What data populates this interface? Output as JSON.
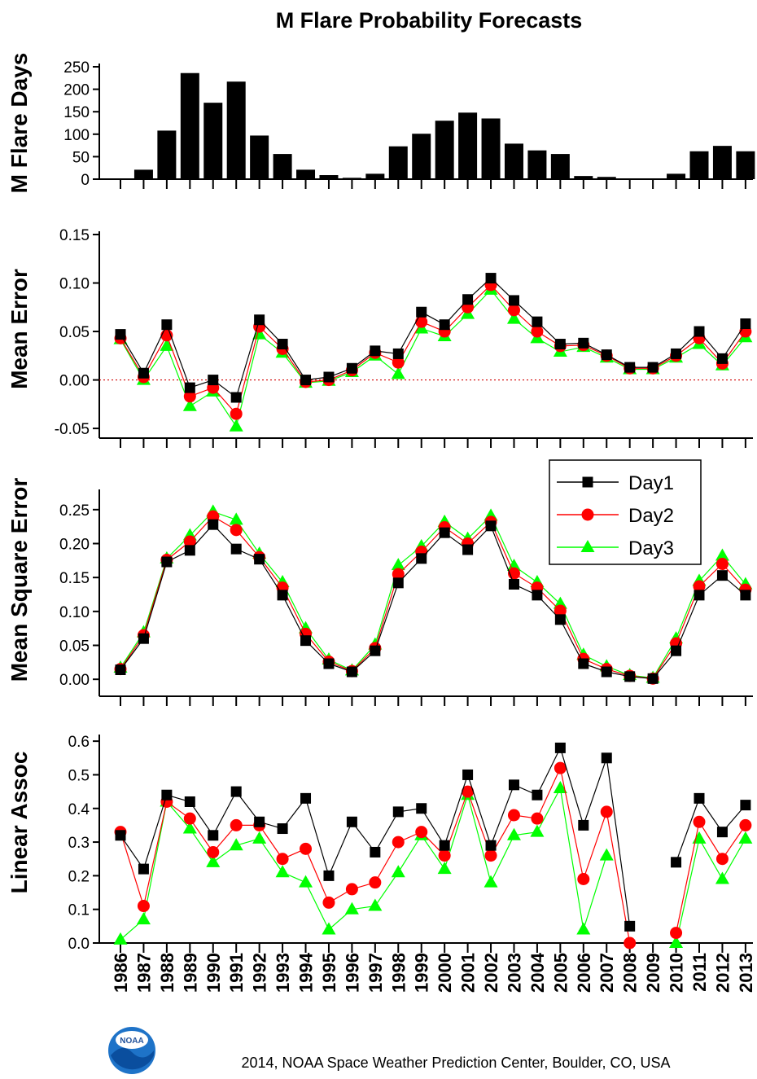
{
  "title": "M Flare Probability Forecasts",
  "credit": "2014, NOAA Space Weather Prediction Center, Boulder, CO, USA",
  "logo_text": "NOAA",
  "colors": {
    "day1": "#000000",
    "day2": "#ff0000",
    "day3": "#00ff00",
    "zero_line": "#d00000"
  },
  "chart_data": [
    {
      "type": "bar",
      "ylabel": "M  Flare Days",
      "ylim": [
        0,
        250
      ],
      "yticks": [
        "0",
        "50",
        "100",
        "150",
        "200",
        "250"
      ],
      "categories": [
        "1986",
        "1987",
        "1988",
        "1989",
        "1990",
        "1991",
        "1992",
        "1993",
        "1994",
        "1995",
        "1996",
        "1997",
        "1998",
        "1999",
        "2000",
        "2001",
        "2002",
        "2003",
        "2004",
        "2005",
        "2006",
        "2007",
        "2008",
        "2009",
        "2010",
        "2011",
        "2012",
        "2013"
      ],
      "values": [
        0,
        21,
        108,
        236,
        170,
        217,
        97,
        56,
        21,
        9,
        3,
        12,
        73,
        101,
        130,
        148,
        135,
        79,
        64,
        56,
        7,
        5,
        0,
        0,
        12,
        62,
        74,
        62
      ]
    },
    {
      "type": "line",
      "ylabel": "Mean Error",
      "ylim": [
        -0.06,
        0.15
      ],
      "yticks": [
        "-0.05",
        "0.00",
        "0.05",
        "0.10",
        "0.15"
      ],
      "reference_line": 0.0,
      "x": [
        "1986",
        "1987",
        "1988",
        "1989",
        "1990",
        "1991",
        "1992",
        "1993",
        "1994",
        "1995",
        "1996",
        "1997",
        "1998",
        "1999",
        "2000",
        "2001",
        "2002",
        "2003",
        "2004",
        "2005",
        "2006",
        "2007",
        "2008",
        "2009",
        "2010",
        "2011",
        "2012",
        "2013"
      ],
      "series": [
        {
          "name": "Day1",
          "values": [
            0.047,
            0.007,
            0.057,
            -0.008,
            0.0,
            -0.018,
            0.062,
            0.037,
            0.0,
            0.003,
            0.012,
            0.03,
            0.027,
            0.07,
            0.057,
            0.083,
            0.105,
            0.082,
            0.06,
            0.037,
            0.038,
            0.026,
            0.013,
            0.013,
            0.027,
            0.05,
            0.022,
            0.058
          ]
        },
        {
          "name": "Day2",
          "values": [
            0.043,
            0.003,
            0.046,
            -0.017,
            -0.008,
            -0.035,
            0.055,
            0.032,
            -0.002,
            0.0,
            0.01,
            0.028,
            0.018,
            0.06,
            0.05,
            0.075,
            0.098,
            0.072,
            0.05,
            0.035,
            0.036,
            0.025,
            0.012,
            0.012,
            0.025,
            0.043,
            0.017,
            0.05
          ]
        },
        {
          "name": "Day3",
          "values": [
            0.042,
            0.0,
            0.035,
            -0.027,
            -0.012,
            -0.048,
            0.047,
            0.028,
            -0.003,
            -0.001,
            0.008,
            0.025,
            0.006,
            0.053,
            0.045,
            0.068,
            0.093,
            0.063,
            0.043,
            0.029,
            0.034,
            0.023,
            0.011,
            0.011,
            0.023,
            0.037,
            0.015,
            0.044
          ]
        }
      ]
    },
    {
      "type": "line",
      "ylabel": "Mean Square Error",
      "ylim": [
        -0.025,
        0.275
      ],
      "yticks": [
        "0.00",
        "0.05",
        "0.10",
        "0.15",
        "0.20",
        "0.25"
      ],
      "legend": "top-right",
      "x": [
        "1986",
        "1987",
        "1988",
        "1989",
        "1990",
        "1991",
        "1992",
        "1993",
        "1994",
        "1995",
        "1996",
        "1997",
        "1998",
        "1999",
        "2000",
        "2001",
        "2002",
        "2003",
        "2004",
        "2005",
        "2006",
        "2007",
        "2008",
        "2009",
        "2010",
        "2011",
        "2012",
        "2013"
      ],
      "series": [
        {
          "name": "Day1",
          "values": [
            0.014,
            0.06,
            0.173,
            0.19,
            0.228,
            0.192,
            0.177,
            0.124,
            0.057,
            0.023,
            0.011,
            0.042,
            0.142,
            0.178,
            0.216,
            0.191,
            0.226,
            0.14,
            0.124,
            0.088,
            0.023,
            0.011,
            0.004,
            0.001,
            0.042,
            0.124,
            0.153,
            0.124
          ]
        },
        {
          "name": "Day2",
          "values": [
            0.015,
            0.065,
            0.176,
            0.203,
            0.24,
            0.22,
            0.18,
            0.135,
            0.067,
            0.026,
            0.012,
            0.046,
            0.155,
            0.188,
            0.224,
            0.2,
            0.232,
            0.156,
            0.135,
            0.101,
            0.03,
            0.015,
            0.005,
            0.001,
            0.053,
            0.137,
            0.17,
            0.132
          ]
        },
        {
          "name": "Day3",
          "values": [
            0.017,
            0.069,
            0.178,
            0.212,
            0.247,
            0.235,
            0.185,
            0.143,
            0.075,
            0.029,
            0.013,
            0.051,
            0.168,
            0.196,
            0.232,
            0.207,
            0.241,
            0.167,
            0.143,
            0.111,
            0.036,
            0.019,
            0.006,
            0.002,
            0.06,
            0.145,
            0.182,
            0.14
          ]
        }
      ]
    },
    {
      "type": "line",
      "ylabel": "Linear Assoc",
      "ylim": [
        0,
        0.61
      ],
      "yticks": [
        "0.0",
        "0.1",
        "0.2",
        "0.3",
        "0.4",
        "0.5",
        "0.6"
      ],
      "x": [
        "1986",
        "1987",
        "1988",
        "1989",
        "1990",
        "1991",
        "1992",
        "1993",
        "1994",
        "1995",
        "1996",
        "1997",
        "1998",
        "1999",
        "2000",
        "2001",
        "2002",
        "2003",
        "2004",
        "2005",
        "2006",
        "2007",
        "2008",
        "2009",
        "2010",
        "2011",
        "2012",
        "2013"
      ],
      "series": [
        {
          "name": "Day1",
          "values": [
            0.32,
            0.22,
            0.44,
            0.42,
            0.32,
            0.45,
            0.36,
            0.34,
            0.43,
            0.2,
            0.36,
            0.27,
            0.39,
            0.4,
            0.29,
            0.5,
            0.29,
            0.47,
            0.44,
            0.58,
            0.35,
            0.55,
            0.05,
            null,
            0.24,
            0.43,
            0.33,
            0.41
          ]
        },
        {
          "name": "Day2",
          "values": [
            0.33,
            0.11,
            0.42,
            0.37,
            0.27,
            0.35,
            0.35,
            0.25,
            0.28,
            0.12,
            0.16,
            0.18,
            0.3,
            0.33,
            0.26,
            0.45,
            0.26,
            0.38,
            0.37,
            0.52,
            0.19,
            0.39,
            0.0,
            null,
            0.03,
            0.36,
            0.25,
            0.35
          ]
        },
        {
          "name": "Day3",
          "values": [
            0.01,
            0.07,
            0.42,
            0.34,
            0.24,
            0.29,
            0.31,
            0.21,
            0.18,
            0.04,
            0.1,
            0.11,
            0.21,
            0.32,
            0.22,
            0.44,
            0.18,
            0.32,
            0.33,
            0.46,
            0.04,
            0.26,
            null,
            null,
            0.0,
            0.31,
            0.19,
            0.31
          ]
        }
      ]
    }
  ]
}
